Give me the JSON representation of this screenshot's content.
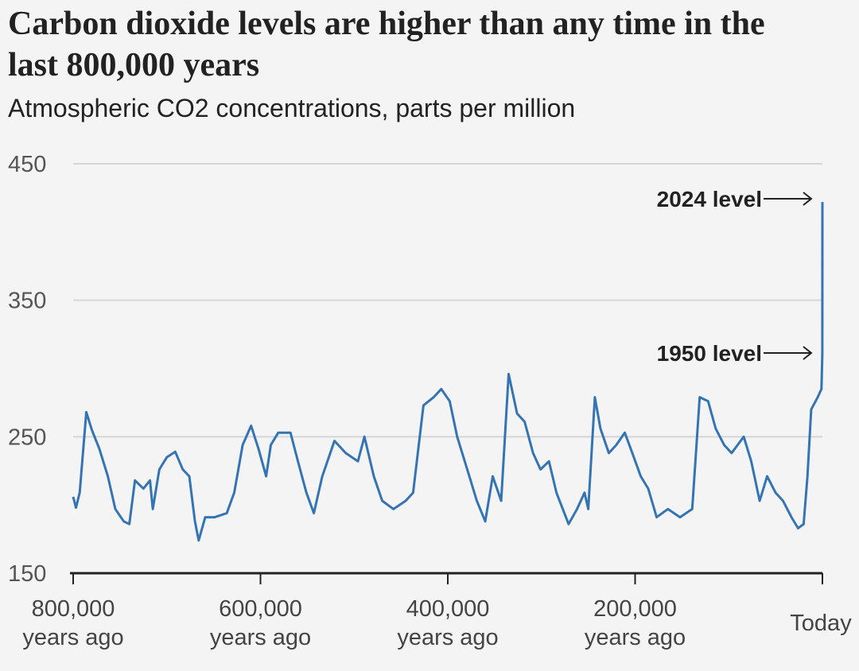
{
  "chart_data": {
    "type": "line",
    "title": "Carbon dioxide levels are higher than any time in the last 800,000 years",
    "subtitle": "Atmospheric CO2 concentrations, parts per million",
    "annotations": [
      "2024 level",
      "1950 level"
    ],
    "xlim": [
      800000,
      0
    ],
    "xticks": [
      {
        "value": 800000,
        "label": "800,000\nyears ago"
      },
      {
        "value": 600000,
        "label": "600,000\nyears ago"
      },
      {
        "value": 400000,
        "label": "400,000\nyears ago"
      },
      {
        "value": 200000,
        "label": "200,000\nyears ago"
      },
      {
        "value": 0,
        "label": "Today"
      }
    ],
    "ylim": [
      150,
      450
    ],
    "yticks": [
      150,
      250,
      350,
      450
    ],
    "grid": true,
    "x": [
      800000,
      797000,
      793000,
      786000,
      780000,
      772000,
      763000,
      755000,
      746000,
      740000,
      734000,
      725000,
      718000,
      715000,
      708000,
      700000,
      691000,
      683000,
      676000,
      670000,
      666000,
      659000,
      649000,
      636000,
      628000,
      619000,
      610000,
      602000,
      594000,
      589000,
      581000,
      568000,
      560000,
      551000,
      543000,
      534000,
      521000,
      509000,
      496000,
      489000,
      479000,
      470000,
      458000,
      445000,
      437000,
      426000,
      415000,
      407000,
      398000,
      390000,
      377000,
      369000,
      360000,
      352000,
      343000,
      335000,
      326000,
      318000,
      309000,
      301000,
      292000,
      284000,
      271000,
      262000,
      254000,
      250000,
      243000,
      237000,
      228000,
      220000,
      211000,
      203000,
      194000,
      186000,
      177000,
      165000,
      152000,
      139000,
      131000,
      122000,
      114000,
      105000,
      97000,
      84000,
      76000,
      67000,
      59000,
      50000,
      42000,
      33000,
      26000,
      20000,
      16000,
      12000,
      5000,
      1000,
      74,
      0
    ],
    "series": [
      {
        "name": "CO2",
        "color": "#3474b3",
        "values": [
          206,
          198,
          209,
          268,
          255,
          241,
          221,
          197,
          188,
          186,
          218,
          212,
          218,
          197,
          226,
          235,
          239,
          226,
          221,
          188,
          174,
          191,
          191,
          194,
          209,
          244,
          258,
          241,
          221,
          244,
          253,
          253,
          232,
          209,
          194,
          221,
          247,
          238,
          232,
          250,
          221,
          203,
          197,
          203,
          209,
          273,
          279,
          285,
          276,
          250,
          221,
          203,
          188,
          221,
          203,
          296,
          267,
          261,
          238,
          226,
          232,
          209,
          186,
          197,
          209,
          197,
          279,
          256,
          238,
          244,
          253,
          238,
          221,
          212,
          191,
          197,
          191,
          197,
          279,
          276,
          256,
          244,
          238,
          250,
          232,
          203,
          221,
          209,
          203,
          191,
          183,
          186,
          221,
          270,
          279,
          285,
          311,
          422
        ]
      }
    ]
  }
}
